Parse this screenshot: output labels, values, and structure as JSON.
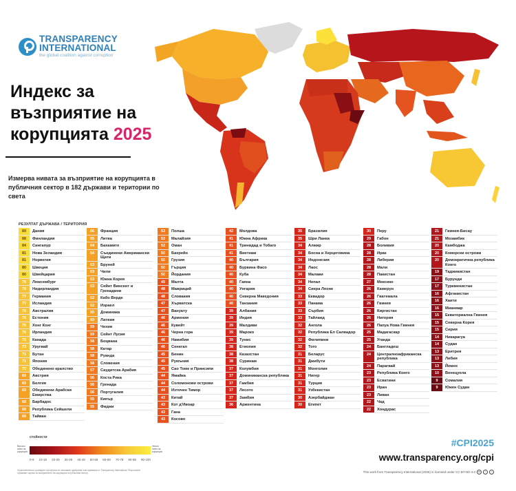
{
  "logo": {
    "line1": "TRANSPARENCY",
    "line2": "INTERNATIONAL",
    "tagline": "the global coalition against corruption"
  },
  "title": {
    "text": "Индекс за възприятие на корупцията",
    "year": "2025"
  },
  "subtitle": "Измерва нивата за възприятие на корупцията в публичния сектор в 182 държави и територии по света",
  "table_header": "РЕЗУЛТАТ ДЪРЖАВА / ТЕРИТОРИЯ",
  "legend": {
    "title": "стойности",
    "low_label": "Високо ниво на корупция",
    "high_label": "Ниско ниво на корупция",
    "ticks": [
      "0-9",
      "10-19",
      "20-29",
      "30-39",
      "40-49",
      "50-59",
      "60-69",
      "70-79",
      "80-89",
      "90-100"
    ],
    "colors": [
      "#6b0a10",
      "#8e1016",
      "#b3161b",
      "#d6261c",
      "#e8501e",
      "#f07a20",
      "#f5a126",
      "#f7c237",
      "#f8dc3a",
      "#fbef3c"
    ]
  },
  "footnote": "Ограниченията и границите на картата не означават одобрение или приемане от Transparency International. Резултатите отразяват оценки за възприятието на корупцията в публичния сектор.",
  "hashtag": "#CPI2025",
  "url": "www.transparency.org/cpi",
  "license": "This work from Transparency International (2026) is licensed under CC BY-ND 4.0",
  "chart_data": {
    "type": "table",
    "title": "Индекс за възприятие на корупцията 2025",
    "subtitle": "Измерва нивата за възприятие на корупцията в публичния сектор в 182 държави и територии по света",
    "columns": [
      "Резултат",
      "Държава / Територия"
    ],
    "scale": [
      0,
      100
    ],
    "rows": [
      [
        89,
        "Дания"
      ],
      [
        88,
        "Финландия"
      ],
      [
        84,
        "Сингапур"
      ],
      [
        81,
        "Нова Зеландия"
      ],
      [
        81,
        "Норвегия"
      ],
      [
        80,
        "Швеция"
      ],
      [
        80,
        "Швейцария"
      ],
      [
        78,
        "Люксембург"
      ],
      [
        78,
        "Нидерландия"
      ],
      [
        77,
        "Германия"
      ],
      [
        77,
        "Исландия"
      ],
      [
        76,
        "Австралия"
      ],
      [
        76,
        "Естония"
      ],
      [
        76,
        "Хонг Конг"
      ],
      [
        76,
        "Ирландия"
      ],
      [
        75,
        "Канада"
      ],
      [
        73,
        "Уругвай"
      ],
      [
        71,
        "Бутан"
      ],
      [
        71,
        "Япония"
      ],
      [
        70,
        "Обединено кралство"
      ],
      [
        69,
        "Австрия"
      ],
      [
        69,
        "Белгия"
      ],
      [
        69,
        "Обединени Арабски Емирства"
      ],
      [
        68,
        "Барбадос"
      ],
      [
        68,
        "Република Сейшели"
      ],
      [
        68,
        "Тайван"
      ],
      [
        66,
        "Франция"
      ],
      [
        65,
        "Литва"
      ],
      [
        64,
        "Бахамите"
      ],
      [
        64,
        "Съединени Американски Щати"
      ],
      [
        63,
        "Бруней"
      ],
      [
        63,
        "Чили"
      ],
      [
        63,
        "Южна Корея"
      ],
      [
        63,
        "Сейнт Винсент и Гренадини"
      ],
      [
        62,
        "Кабо Верде"
      ],
      [
        62,
        "Израел"
      ],
      [
        60,
        "Доминика"
      ],
      [
        60,
        "Латвия"
      ],
      [
        59,
        "Чехия"
      ],
      [
        59,
        "Сейнт Лусия"
      ],
      [
        58,
        "Боцвана"
      ],
      [
        58,
        "Катар"
      ],
      [
        58,
        "Руанда"
      ],
      [
        58,
        "Словения"
      ],
      [
        57,
        "Саудитска Арабия"
      ],
      [
        56,
        "Коста Рика"
      ],
      [
        56,
        "Гренада"
      ],
      [
        56,
        "Португалия"
      ],
      [
        55,
        "Кипър"
      ],
      [
        55,
        "Фиджи"
      ],
      [
        53,
        "Полша"
      ],
      [
        52,
        "Малайзия"
      ],
      [
        52,
        "Оман"
      ],
      [
        50,
        "Бахрейн"
      ],
      [
        50,
        "Грузия"
      ],
      [
        50,
        "Гърция"
      ],
      [
        50,
        "Йордания"
      ],
      [
        49,
        "Малта"
      ],
      [
        48,
        "Мавриций"
      ],
      [
        48,
        "Словакия"
      ],
      [
        47,
        "Хърватска"
      ],
      [
        47,
        "Вануату"
      ],
      [
        46,
        "Армения"
      ],
      [
        46,
        "Кувейт"
      ],
      [
        46,
        "Черна гора"
      ],
      [
        46,
        "Намибия"
      ],
      [
        46,
        "Сенегал"
      ],
      [
        45,
        "Бенин"
      ],
      [
        45,
        "Румъния"
      ],
      [
        45,
        "Сао Томе и Принсипи"
      ],
      [
        44,
        "Ямайка"
      ],
      [
        44,
        "Соломонови острови"
      ],
      [
        44,
        "Източен Тимор"
      ],
      [
        43,
        "Китай"
      ],
      [
        43,
        "Кот д'Ивоар"
      ],
      [
        43,
        "Гана"
      ],
      [
        43,
        "Косово"
      ],
      [
        42,
        "Молдова"
      ],
      [
        41,
        "Южна Африка"
      ],
      [
        41,
        "Тринидад и Тобаго"
      ],
      [
        41,
        "Виетнам"
      ],
      [
        40,
        "България"
      ],
      [
        40,
        "Буркина Фасо"
      ],
      [
        40,
        "Куба"
      ],
      [
        40,
        "Гаяна"
      ],
      [
        40,
        "Унгария"
      ],
      [
        40,
        "Северна Македония"
      ],
      [
        40,
        "Танзания"
      ],
      [
        39,
        "Албания"
      ],
      [
        39,
        "Индия"
      ],
      [
        39,
        "Малдиви"
      ],
      [
        39,
        "Мароко"
      ],
      [
        39,
        "Тунис"
      ],
      [
        38,
        "Етиопия"
      ],
      [
        38,
        "Казахстан"
      ],
      [
        38,
        "Суринам"
      ],
      [
        37,
        "Колумбия"
      ],
      [
        37,
        "Доминиканска република"
      ],
      [
        37,
        "Гамбия"
      ],
      [
        37,
        "Лесото"
      ],
      [
        37,
        "Замбия"
      ],
      [
        36,
        "Аржентина"
      ],
      [
        35,
        "Бразилия"
      ],
      [
        35,
        "Шри Ланка"
      ],
      [
        34,
        "Алжир"
      ],
      [
        34,
        "Босна и Херцеговина"
      ],
      [
        34,
        "Индонезия"
      ],
      [
        34,
        "Лаос"
      ],
      [
        34,
        "Малави"
      ],
      [
        34,
        "Непал"
      ],
      [
        34,
        "Сиера Леоне"
      ],
      [
        33,
        "Еквадор"
      ],
      [
        33,
        "Панама"
      ],
      [
        33,
        "Сърбия"
      ],
      [
        33,
        "Тайланд"
      ],
      [
        32,
        "Ангола"
      ],
      [
        32,
        "Република Ел Салвадор"
      ],
      [
        32,
        "Филипини"
      ],
      [
        32,
        "Того"
      ],
      [
        31,
        "Беларус"
      ],
      [
        31,
        "Джибути"
      ],
      [
        31,
        "Монголия"
      ],
      [
        31,
        "Нигер"
      ],
      [
        31,
        "Турция"
      ],
      [
        31,
        "Узбекистан"
      ],
      [
        30,
        "Азербайджан"
      ],
      [
        30,
        "Египет"
      ],
      [
        30,
        "Перу"
      ],
      [
        29,
        "Габон"
      ],
      [
        28,
        "Боливия"
      ],
      [
        28,
        "Ирак"
      ],
      [
        28,
        "Либерия"
      ],
      [
        28,
        "Мали"
      ],
      [
        28,
        "Пакистан"
      ],
      [
        27,
        "Мексико"
      ],
      [
        26,
        "Камерун"
      ],
      [
        26,
        "Гватемала"
      ],
      [
        26,
        "Гвинея"
      ],
      [
        26,
        "Киргистан"
      ],
      [
        26,
        "Нигерия"
      ],
      [
        26,
        "Папуа Нова Гвинея"
      ],
      [
        25,
        "Мадагаскар"
      ],
      [
        25,
        "Уганда"
      ],
      [
        24,
        "Бангладеш"
      ],
      [
        24,
        "Централноафриканска република"
      ],
      [
        24,
        "Парагвай"
      ],
      [
        23,
        "Република Конго"
      ],
      [
        23,
        "Есватини"
      ],
      [
        23,
        "Иран"
      ],
      [
        23,
        "Ливан"
      ],
      [
        22,
        "Чад"
      ],
      [
        22,
        "Хондурас"
      ],
      [
        21,
        "Гвинея-Бисау"
      ],
      [
        21,
        "Мозамбик"
      ],
      [
        20,
        "Камбоджа"
      ],
      [
        20,
        "Коморски острови"
      ],
      [
        20,
        "Демократична република Конго"
      ],
      [
        19,
        "Таджикистан"
      ],
      [
        17,
        "Бурунди"
      ],
      [
        17,
        "Туркменистан"
      ],
      [
        16,
        "Афганистан"
      ],
      [
        16,
        "Хаити"
      ],
      [
        16,
        "Мианмар"
      ],
      [
        15,
        "Екваториална Гвинея"
      ],
      [
        15,
        "Северна Корея"
      ],
      [
        15,
        "Сирия"
      ],
      [
        14,
        "Никарагуа"
      ],
      [
        14,
        "Судан"
      ],
      [
        13,
        "Еритрея"
      ],
      [
        13,
        "Либия"
      ],
      [
        13,
        "Йемен"
      ],
      [
        10,
        "Венецуела"
      ],
      [
        9,
        "Сомалия"
      ],
      [
        9,
        "Южен Судан"
      ]
    ],
    "column_breaks": [
      26,
      24,
      27,
      25,
      25,
      25,
      22
    ]
  }
}
